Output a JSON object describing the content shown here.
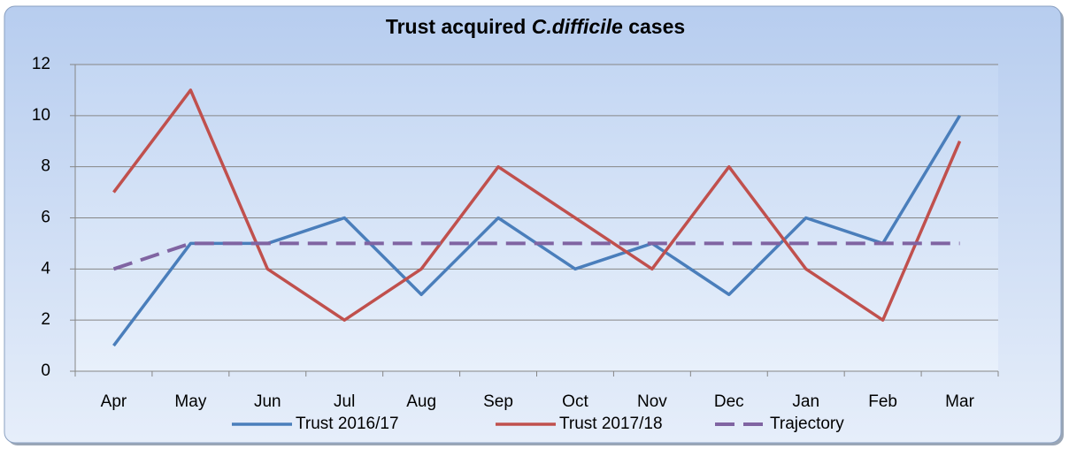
{
  "chart_data": {
    "type": "line",
    "title": [
      "Trust acquired",
      "C.difficile",
      "cases"
    ],
    "categories": [
      "Apr",
      "May",
      "Jun",
      "Jul",
      "Aug",
      "Sep",
      "Oct",
      "Nov",
      "Dec",
      "Jan",
      "Feb",
      "Mar"
    ],
    "series": [
      {
        "name": "Trust  2016/17",
        "color": "#4a7ebb",
        "values": [
          1,
          5,
          5,
          6,
          3,
          6,
          4,
          5,
          3,
          6,
          5,
          10
        ]
      },
      {
        "name": "Trust 2017/18",
        "color": "#c0504d",
        "values": [
          7,
          11,
          4,
          2,
          4,
          8,
          6,
          4,
          8,
          4,
          2,
          9
        ]
      },
      {
        "name": "Trajectory",
        "color": "#8064a2",
        "dashed": true,
        "values": [
          4,
          5,
          5,
          5,
          5,
          5,
          5,
          5,
          5,
          5,
          5,
          5
        ]
      }
    ],
    "ylim": [
      0,
      12
    ],
    "yticks": [
      0,
      2,
      4,
      6,
      8,
      10,
      12
    ],
    "grid": true,
    "legend": "bottom"
  }
}
